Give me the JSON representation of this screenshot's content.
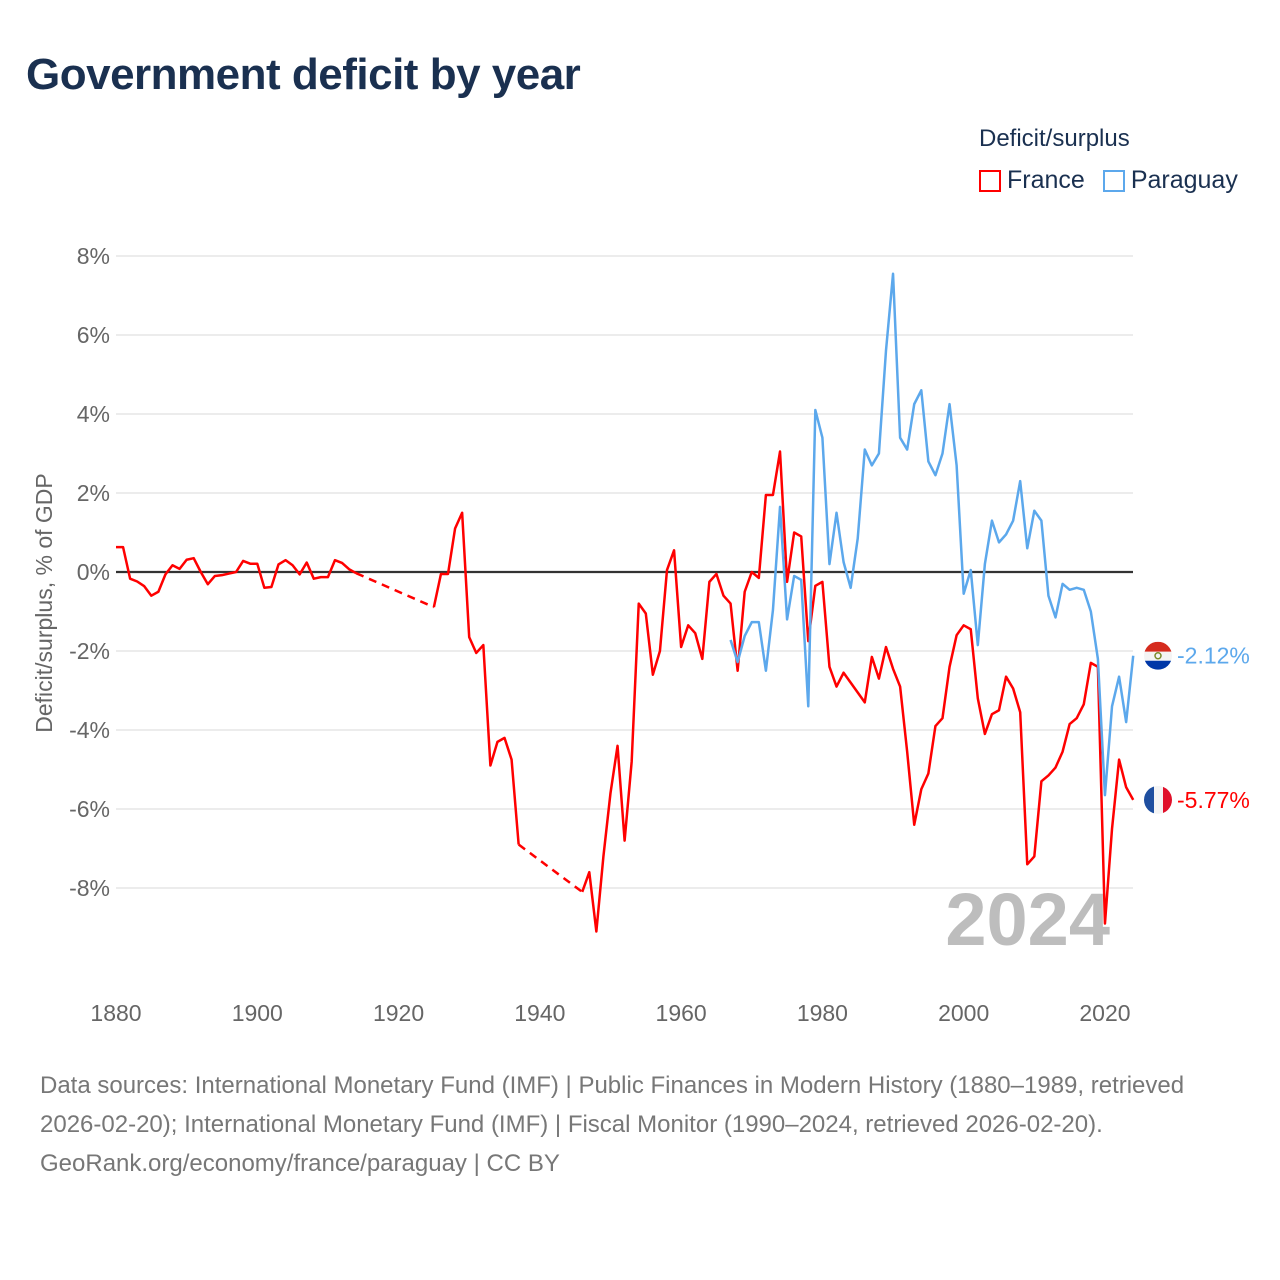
{
  "title": "Government deficit by year",
  "legend": {
    "title": "Deficit/surplus",
    "items": [
      {
        "name": "France",
        "color": "#ff0000"
      },
      {
        "name": "Paraguay",
        "color": "#5ca8ec"
      }
    ]
  },
  "watermark_year": "2024",
  "footer": {
    "sources": "Data sources: International Monetary Fund (IMF) | Public Finances in Modern History (1880–1989, retrieved 2026-02-20); International Monetary Fund (IMF) | Fiscal Monitor (1990–2024, retrieved 2026-02-20).",
    "credit": "GeoRank.org/economy/france/paraguay | CC BY"
  },
  "chart_data": {
    "type": "line",
    "title": "Government deficit by year",
    "xlabel": "",
    "ylabel": "Deficit/surplus, % of GDP",
    "xlim": [
      1880,
      2024
    ],
    "ylim": [
      -10,
      8
    ],
    "x_ticks": [
      1880,
      1900,
      1920,
      1940,
      1960,
      1980,
      2000,
      2020
    ],
    "y_ticks": [
      -8,
      -6,
      -4,
      -2,
      0,
      2,
      4,
      6,
      8
    ],
    "y_tick_labels": [
      "-8%",
      "-6%",
      "-4%",
      "-2%",
      "0%",
      "2%",
      "4%",
      "6%",
      "8%"
    ],
    "end_labels": {
      "France": "-5.77%",
      "Paraguay": "-2.12%"
    },
    "series": [
      {
        "name": "France",
        "color": "#ff0000",
        "start_year": 1880,
        "values": [
          0.63,
          0.63,
          -0.17,
          -0.24,
          -0.36,
          -0.6,
          -0.5,
          -0.06,
          0.17,
          0.08,
          0.31,
          0.35,
          0,
          -0.31,
          -0.1,
          -0.08,
          -0.04,
          0,
          0.28,
          0.21,
          0.21,
          -0.4,
          -0.38,
          0.19,
          0.3,
          0.17,
          -0.06,
          0.24,
          -0.17,
          -0.13,
          -0.13,
          0.3,
          0.23,
          0.07,
          -0.03,
          null,
          null,
          null,
          null,
          null,
          null,
          null,
          null,
          null,
          null,
          -0.89,
          -0.05,
          -0.05,
          1.1,
          1.5,
          -1.65,
          -2.05,
          -1.85,
          -4.9,
          -4.3,
          -4.2,
          -4.75,
          -6.9,
          null,
          null,
          null,
          null,
          null,
          null,
          null,
          null,
          -8.1,
          -7.6,
          -9.1,
          -7.2,
          -5.6,
          -4.4,
          -6.8,
          -4.8,
          -0.8,
          -1.05,
          -2.6,
          -2.0,
          0.05,
          0.55,
          -1.9,
          -1.35,
          -1.55,
          -2.2,
          -0.25,
          -0.05,
          -0.6,
          -0.8,
          -2.5,
          -0.5,
          0.0,
          -0.15,
          1.95,
          1.95,
          3.05,
          -0.25,
          1.0,
          0.9,
          -1.75,
          -0.35,
          -0.25,
          -2.4,
          -2.9,
          -2.55,
          -2.8,
          -3.05,
          -3.3,
          -2.15,
          -2.7,
          -1.9,
          -2.45,
          -2.9,
          -4.55,
          -6.4,
          -5.5,
          -5.1,
          -3.9,
          -3.7,
          -2.4,
          -1.6,
          -1.35,
          -1.45,
          -3.2,
          -4.1,
          -3.6,
          -3.5,
          -2.65,
          -2.95,
          -3.55,
          -7.4,
          -7.2,
          -5.3,
          -5.15,
          -4.95,
          -4.55,
          -3.85,
          -3.7,
          -3.35,
          -2.3,
          -2.4,
          -8.9,
          -6.5,
          -4.75,
          -5.45,
          -5.77
        ]
      },
      {
        "name": "Paraguay",
        "color": "#5ca8ec",
        "start_year": 1967,
        "values": [
          -1.72,
          -2.28,
          -1.62,
          -1.27,
          -1.27,
          -2.5,
          -0.96,
          1.65,
          -1.2,
          -0.1,
          -0.2,
          -3.4,
          4.1,
          3.4,
          0.2,
          1.5,
          0.25,
          -0.4,
          0.85,
          3.1,
          2.7,
          3.0,
          5.6,
          7.55,
          3.4,
          3.1,
          4.25,
          4.6,
          2.8,
          2.45,
          3.0,
          4.25,
          2.7,
          -0.55,
          0.05,
          -1.85,
          0.2,
          1.3,
          0.75,
          0.95,
          1.3,
          2.3,
          0.6,
          1.55,
          1.3,
          -0.6,
          -1.15,
          -0.3,
          -0.45,
          -0.4,
          -0.45,
          -1.0,
          -2.2,
          -5.65,
          -3.4,
          -2.65,
          -3.8,
          -2.12
        ]
      }
    ]
  }
}
